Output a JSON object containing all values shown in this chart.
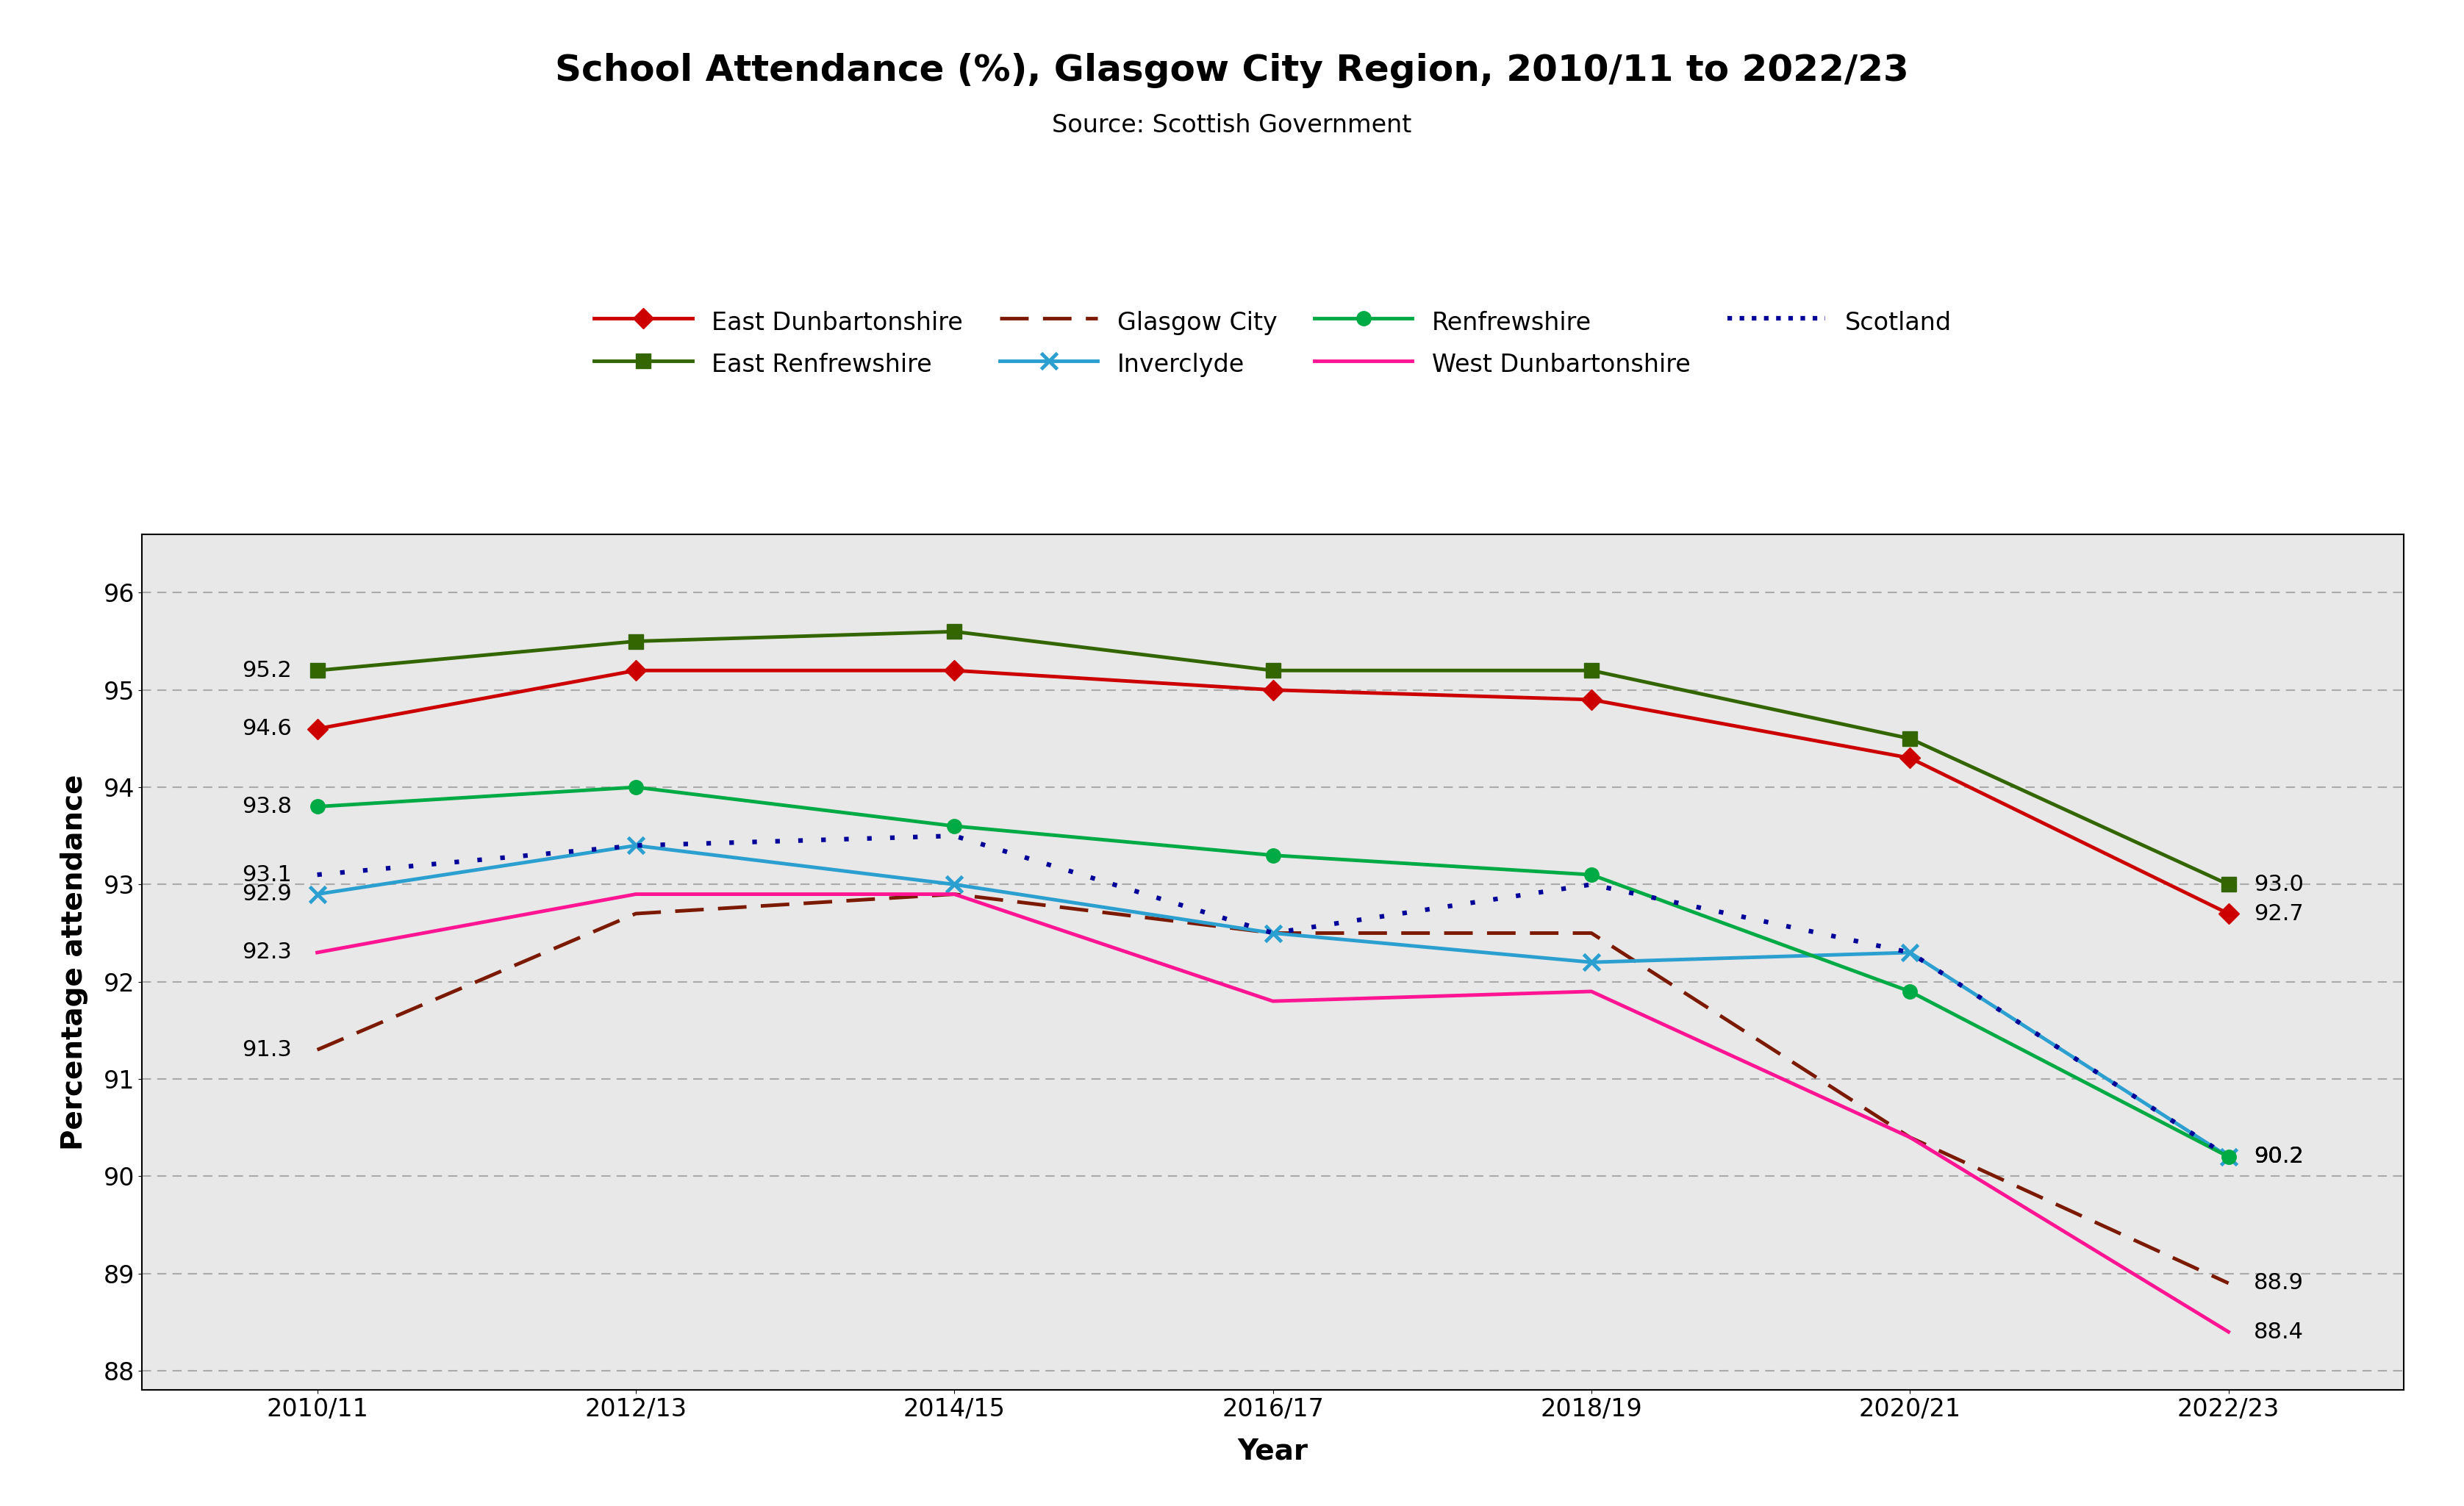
{
  "title": "School Attendance (%), Glasgow City Region, 2010/11 to 2022/23",
  "subtitle": "Source: Scottish Government",
  "xlabel": "Year",
  "ylabel": "Percentage attendance",
  "bg_color": "#e8e8e8",
  "grid_color": "#b0b0b0",
  "years": [
    "2010/11",
    "2012/13",
    "2014/15",
    "2016/17",
    "2018/19",
    "2020/21",
    "2022/23"
  ],
  "series_order": [
    "East Dunbartonshire",
    "East Renfrewshire",
    "Glasgow City",
    "Inverclyde",
    "Renfrewshire",
    "West Dunbartonshire",
    "Scotland"
  ],
  "series": {
    "East Dunbartonshire": {
      "values": [
        94.6,
        95.2,
        95.2,
        95.0,
        94.9,
        94.3,
        92.7
      ],
      "color": "#cc0000",
      "linestyle": "solid",
      "marker": "D",
      "markersize": 14,
      "linewidth": 3.5
    },
    "East Renfrewshire": {
      "values": [
        95.2,
        95.5,
        95.6,
        95.2,
        95.2,
        94.5,
        93.0
      ],
      "color": "#336600",
      "linestyle": "solid",
      "marker": "s",
      "markersize": 14,
      "linewidth": 3.5
    },
    "Glasgow City": {
      "values": [
        91.3,
        92.7,
        92.9,
        92.5,
        92.5,
        90.4,
        88.9
      ],
      "color": "#7b1a00",
      "linestyle": "dashed",
      "marker": null,
      "markersize": 0,
      "linewidth": 3.5
    },
    "Inverclyde": {
      "values": [
        92.9,
        93.4,
        93.0,
        92.5,
        92.2,
        92.3,
        90.2
      ],
      "color": "#2a9fd0",
      "linestyle": "solid",
      "marker": "x",
      "markersize": 16,
      "linewidth": 3.5
    },
    "Renfrewshire": {
      "values": [
        93.8,
        94.0,
        93.6,
        93.3,
        93.1,
        91.9,
        90.2
      ],
      "color": "#00aa44",
      "linestyle": "solid",
      "marker": "o",
      "markersize": 14,
      "linewidth": 3.5
    },
    "West Dunbartonshire": {
      "values": [
        92.3,
        92.9,
        92.9,
        91.8,
        91.9,
        90.4,
        88.4
      ],
      "color": "#ff1493",
      "linestyle": "solid",
      "marker": null,
      "markersize": 0,
      "linewidth": 3.5
    },
    "Scotland": {
      "values": [
        93.1,
        93.4,
        93.5,
        92.5,
        93.0,
        92.3,
        90.2
      ],
      "color": "#000099",
      "linestyle": "dotted",
      "marker": null,
      "markersize": 0,
      "linewidth": 3.5
    }
  },
  "left_annotations": {
    "East Dunbartonshire": 94.6,
    "East Renfrewshire": 95.2,
    "Glasgow City": 91.3,
    "Inverclyde": 92.9,
    "Renfrewshire": 93.8,
    "West Dunbartonshire": 92.3,
    "Scotland": 93.1
  },
  "right_annotations": {
    "East Dunbartonshire": 92.7,
    "East Renfrewshire": 93.0,
    "Glasgow City": 88.9,
    "Inverclyde": 90.2,
    "Renfrewshire": 90.2,
    "West Dunbartonshire": 88.4,
    "Scotland": 90.2
  },
  "ylim": [
    87.8,
    96.6
  ],
  "yticks": [
    88,
    89,
    90,
    91,
    92,
    93,
    94,
    95,
    96
  ]
}
